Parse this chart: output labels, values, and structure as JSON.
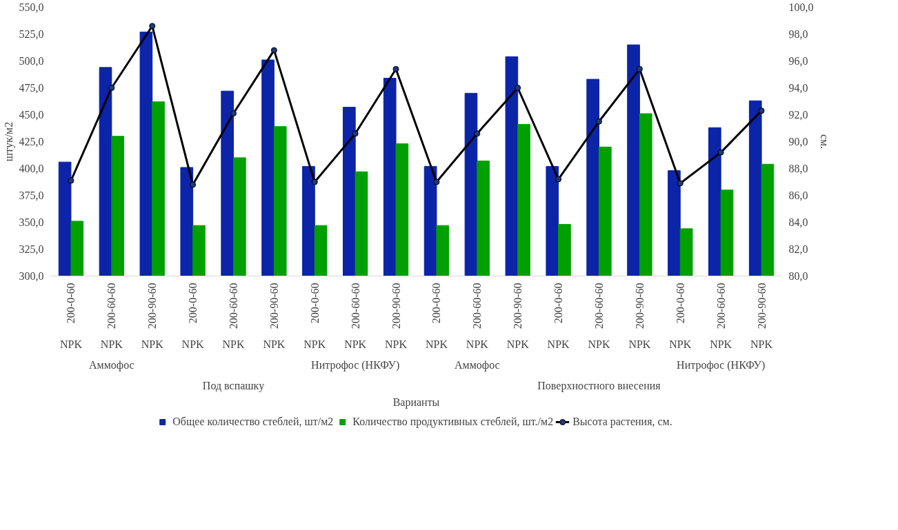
{
  "chart_data": {
    "type": "bar",
    "ylabel": "штук/м2",
    "y2label": "см.",
    "categories": [
      "200-0-60\nNPK",
      "200-60-60\nNPK",
      "200-90-60\nNPK",
      "200-0-60\nNPK",
      "200-60-60\nNPK",
      "200-90-60\nNPK",
      "200-0-60\nNPK",
      "200-60-60\nNPK",
      "200-90-60\nNPK",
      "200-0-60\nNPK",
      "200-60-60\nNPK",
      "200-90-60\nNPK",
      "200-0-60\nNPK",
      "200-60-60\nNPK",
      "200-90-60\nNPK",
      "200-0-60\nNPK",
      "200-60-60\nNPK",
      "200-90-60\nNPK"
    ],
    "annotations": [
      "Аммофос",
      null,
      "Нитрофос (НКФУ)",
      "Аммофос",
      null,
      "Нитрофос (НКФУ)",
      "Под вспашку",
      "Поверхностного внесения",
      "Варианты"
    ],
    "series": [
      {
        "name": "Общее количество стеблей, шт/м2",
        "color": "#0b24a8",
        "values": [
          406,
          494,
          527,
          401,
          472,
          501,
          402,
          457,
          484,
          402,
          470,
          504,
          402,
          483,
          515,
          398,
          438,
          463
        ]
      },
      {
        "name": "Количество продуктивных стеблей, шт./м2",
        "color": "#00a000",
        "values": [
          351,
          430,
          462,
          347,
          410,
          439,
          347,
          397,
          423,
          347,
          407,
          441,
          348,
          420,
          451,
          344,
          380,
          404
        ]
      },
      {
        "name": "Высота растения, см.",
        "color": "#000000",
        "type": "line",
        "axis": "y2",
        "marker": "circle",
        "values": [
          87.1,
          94.0,
          98.6,
          86.8,
          92.1,
          96.8,
          87.0,
          90.6,
          95.4,
          87.0,
          90.6,
          94.0,
          87.2,
          91.5,
          95.4,
          86.9,
          89.2,
          92.3
        ]
      }
    ],
    "ylim": [
      300,
      550
    ],
    "yticks": [
      {
        "value": 300,
        "label": "300,0"
      },
      {
        "value": 325,
        "label": "325,0"
      },
      {
        "value": 350,
        "label": "350,0"
      },
      {
        "value": 375,
        "label": "375,0"
      },
      {
        "value": 400,
        "label": "400,0"
      },
      {
        "value": 425,
        "label": "425,0"
      },
      {
        "value": 450,
        "label": "450,0"
      },
      {
        "value": 475,
        "label": "475,0"
      },
      {
        "value": 500,
        "label": "500,0"
      },
      {
        "value": 525,
        "label": "525,0"
      },
      {
        "value": 550,
        "label": "550,0"
      }
    ],
    "y2lim": [
      80,
      100
    ],
    "y2ticks": [
      {
        "value": 80,
        "label": "80,0"
      },
      {
        "value": 82,
        "label": "82,0"
      },
      {
        "value": 84,
        "label": "84,0"
      },
      {
        "value": 86,
        "label": "86,0"
      },
      {
        "value": 88,
        "label": "88,0"
      },
      {
        "value": 90,
        "label": "90,0"
      },
      {
        "value": 92,
        "label": "92,0"
      },
      {
        "value": 94,
        "label": "94,0"
      },
      {
        "value": 96,
        "label": "96,0"
      },
      {
        "value": 98,
        "label": "98,0"
      },
      {
        "value": 100,
        "label": "100,0"
      }
    ],
    "grid": false,
    "legend": "bottom"
  }
}
